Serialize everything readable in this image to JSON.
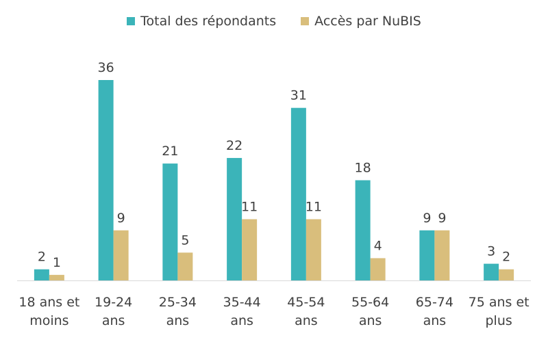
{
  "chart_data": {
    "type": "bar",
    "categories": [
      [
        "18 ans et",
        "moins"
      ],
      [
        "19-24",
        "ans"
      ],
      [
        "25-34",
        "ans"
      ],
      [
        "35-44",
        "ans"
      ],
      [
        "45-54",
        "ans"
      ],
      [
        "55-64",
        "ans"
      ],
      [
        "65-74",
        "ans"
      ],
      [
        "75 ans et",
        "plus"
      ]
    ],
    "series": [
      {
        "name": "Total des répondants",
        "color": "#3BB4B9",
        "values": [
          2,
          36,
          21,
          22,
          31,
          18,
          9,
          3
        ]
      },
      {
        "name": "Accès par NuBIS",
        "color": "#D9BE7C",
        "values": [
          1,
          9,
          5,
          11,
          11,
          4,
          9,
          2
        ]
      }
    ],
    "ylim": [
      0,
      36
    ],
    "grid": false,
    "legend_position": "top-center",
    "data_labels": true
  }
}
